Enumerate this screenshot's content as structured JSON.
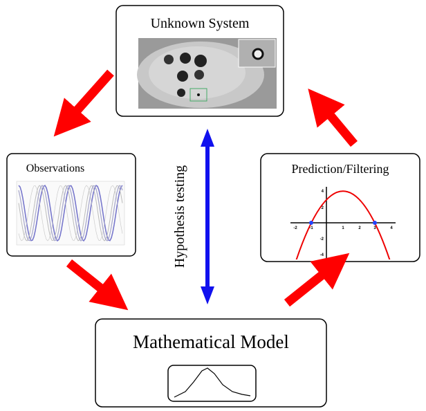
{
  "nodes": {
    "unknown_system": {
      "label": "Unknown System"
    },
    "observations": {
      "label": "Observations"
    },
    "prediction": {
      "label": "Prediction/Filtering",
      "x_tick_labels": [
        "-2",
        "-1",
        "1",
        "2",
        "3",
        "4"
      ],
      "y_tick_labels": [
        "4",
        "2",
        "-2",
        "-4"
      ]
    },
    "model": {
      "label": "Mathematical Model"
    }
  },
  "edges": {
    "hypothesis": {
      "label": "Hypothesis testing"
    }
  }
}
